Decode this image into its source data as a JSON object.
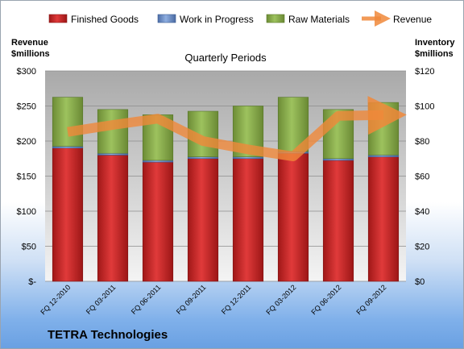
{
  "footer": {
    "company": "TETRA Technologies"
  },
  "chart_data": {
    "type": "bar",
    "stacked": true,
    "title": "Quarterly Periods",
    "categories": [
      "FQ 12-2010",
      "FQ 03-2011",
      "FQ 06-2011",
      "FQ 09-2011",
      "FQ 12-2011",
      "FQ 03-2012",
      "FQ 06-2012",
      "FQ 09-2012"
    ],
    "series": [
      {
        "name": "Finished Goods",
        "type": "bar",
        "axis": "right",
        "color": "#cc2b2b",
        "values": [
          76,
          72,
          68,
          70,
          70,
          73,
          69,
          71
        ]
      },
      {
        "name": "Work in Progress",
        "type": "bar",
        "axis": "right",
        "color": "#6d8ec8",
        "values": [
          1,
          1,
          1,
          1,
          1,
          1,
          1,
          1
        ]
      },
      {
        "name": "Raw Materials",
        "type": "bar",
        "axis": "right",
        "color": "#8db050",
        "values": [
          28,
          25,
          26,
          26,
          29,
          31,
          28,
          30
        ]
      },
      {
        "name": "Revenue",
        "type": "line",
        "axis": "left",
        "color": "#f0883a",
        "values": [
          213,
          223,
          232,
          200,
          188,
          178,
          236,
          237
        ]
      }
    ],
    "left_axis": {
      "label_line1": "Revenue",
      "label_line2": "$millions",
      "ylim": [
        0,
        300
      ],
      "ticks": [
        "$-",
        "$50",
        "$100",
        "$150",
        "$200",
        "$250",
        "$300"
      ]
    },
    "right_axis": {
      "label_line1": "Inventory",
      "label_line2": "$millions",
      "ylim": [
        0,
        120
      ],
      "ticks": [
        "$0",
        "$20",
        "$40",
        "$60",
        "$80",
        "$100",
        "$120"
      ]
    },
    "legend_position": "top",
    "grid": true
  }
}
